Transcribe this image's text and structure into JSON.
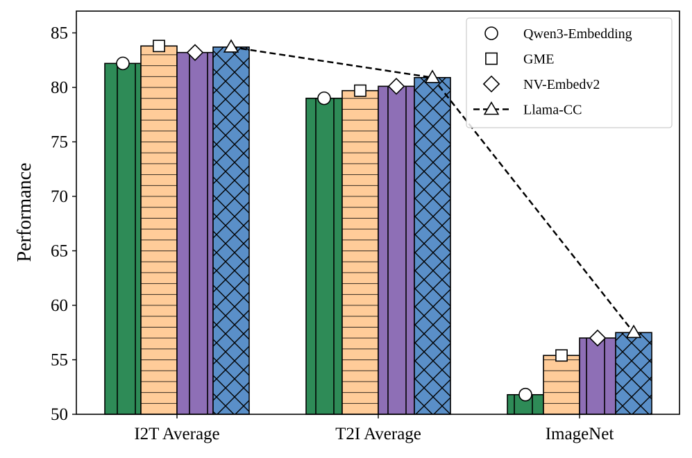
{
  "chart_data": {
    "type": "bar",
    "title": "",
    "xlabel": "",
    "ylabel": "Performance",
    "ylim": [
      50,
      87
    ],
    "yticks": [
      50,
      55,
      60,
      65,
      70,
      75,
      80,
      85
    ],
    "categories": [
      "I2T Average",
      "T2I Average",
      "ImageNet"
    ],
    "series": [
      {
        "name": "Qwen3-Embedding",
        "marker": "circle",
        "color": "#2e8b57",
        "hatch": "vertical",
        "values": [
          82.2,
          79.0,
          51.8
        ]
      },
      {
        "name": "GME",
        "marker": "square",
        "color": "#ffcc99",
        "hatch": "horizontal",
        "values": [
          83.8,
          79.7,
          55.4
        ]
      },
      {
        "name": "NV-Embedv2",
        "marker": "diamond",
        "color": "#8e6fb6",
        "hatch": "vertical",
        "values": [
          83.2,
          80.1,
          57.0
        ]
      },
      {
        "name": "Llama-CC",
        "marker": "triangle",
        "color": "#5a8fc8",
        "hatch": "cross",
        "line": "dashed",
        "values": [
          83.7,
          80.9,
          57.5
        ]
      }
    ],
    "legend_position": "top-right",
    "grid": false
  }
}
